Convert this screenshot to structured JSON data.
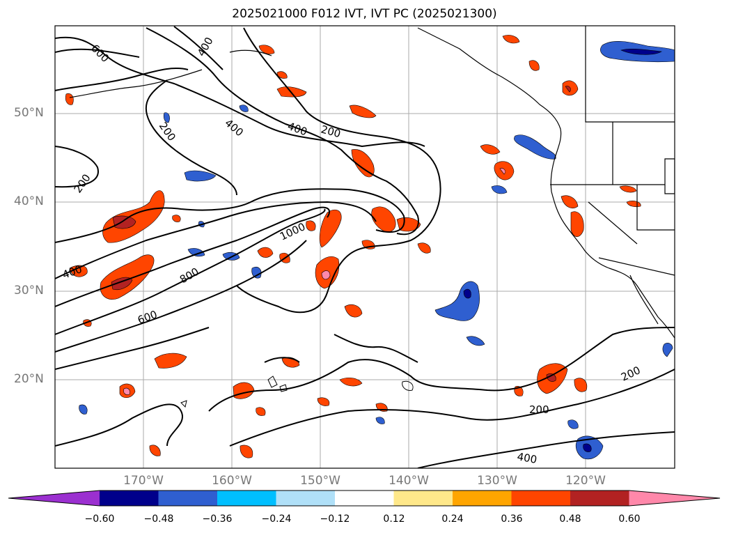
{
  "title": "2025021000 F012 IVT, IVT PC (2025021300)",
  "axes": {
    "lat_labels": [
      "50°N",
      "40°N",
      "30°N",
      "20°N"
    ],
    "lon_labels": [
      "170°W",
      "160°W",
      "150°W",
      "140°W",
      "130°W",
      "120°W"
    ]
  },
  "contour_labels": [
    "600",
    "400",
    "200",
    "400",
    "400",
    "200",
    "200",
    "1000",
    "800",
    "600",
    "400",
    "200",
    "200",
    "400"
  ],
  "colorbar": {
    "colors": [
      "#9b30d0",
      "#00008b",
      "#2f5fd0",
      "#00bfff",
      "#b0e0f8",
      "#ffffff",
      "#ffe88a",
      "#ffa500",
      "#ff4500",
      "#b22222",
      "#ff88aa"
    ],
    "tick_labels": [
      "−0.60",
      "−0.48",
      "−0.36",
      "−0.24",
      "−0.12",
      "0.12",
      "0.24",
      "0.36",
      "0.48",
      "0.60"
    ]
  }
}
